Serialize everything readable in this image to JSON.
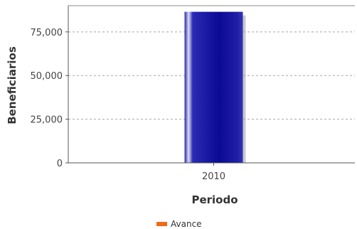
{
  "chart_data": {
    "type": "bar",
    "categories": [
      "2010"
    ],
    "series": [
      {
        "name": "Avance",
        "values": [
          86500
        ],
        "bar_color": "#1a1aa6",
        "legend_color": "#f06a1a"
      }
    ],
    "xlabel": "Periodo",
    "ylabel": "Beneficiarios",
    "ylim": [
      0,
      90000
    ],
    "yticks": [
      0,
      25000,
      50000,
      75000
    ],
    "ytick_labels": [
      "0",
      "25,000",
      "50,000",
      "75,000"
    ],
    "grid": true,
    "legend_position": "bottom"
  }
}
